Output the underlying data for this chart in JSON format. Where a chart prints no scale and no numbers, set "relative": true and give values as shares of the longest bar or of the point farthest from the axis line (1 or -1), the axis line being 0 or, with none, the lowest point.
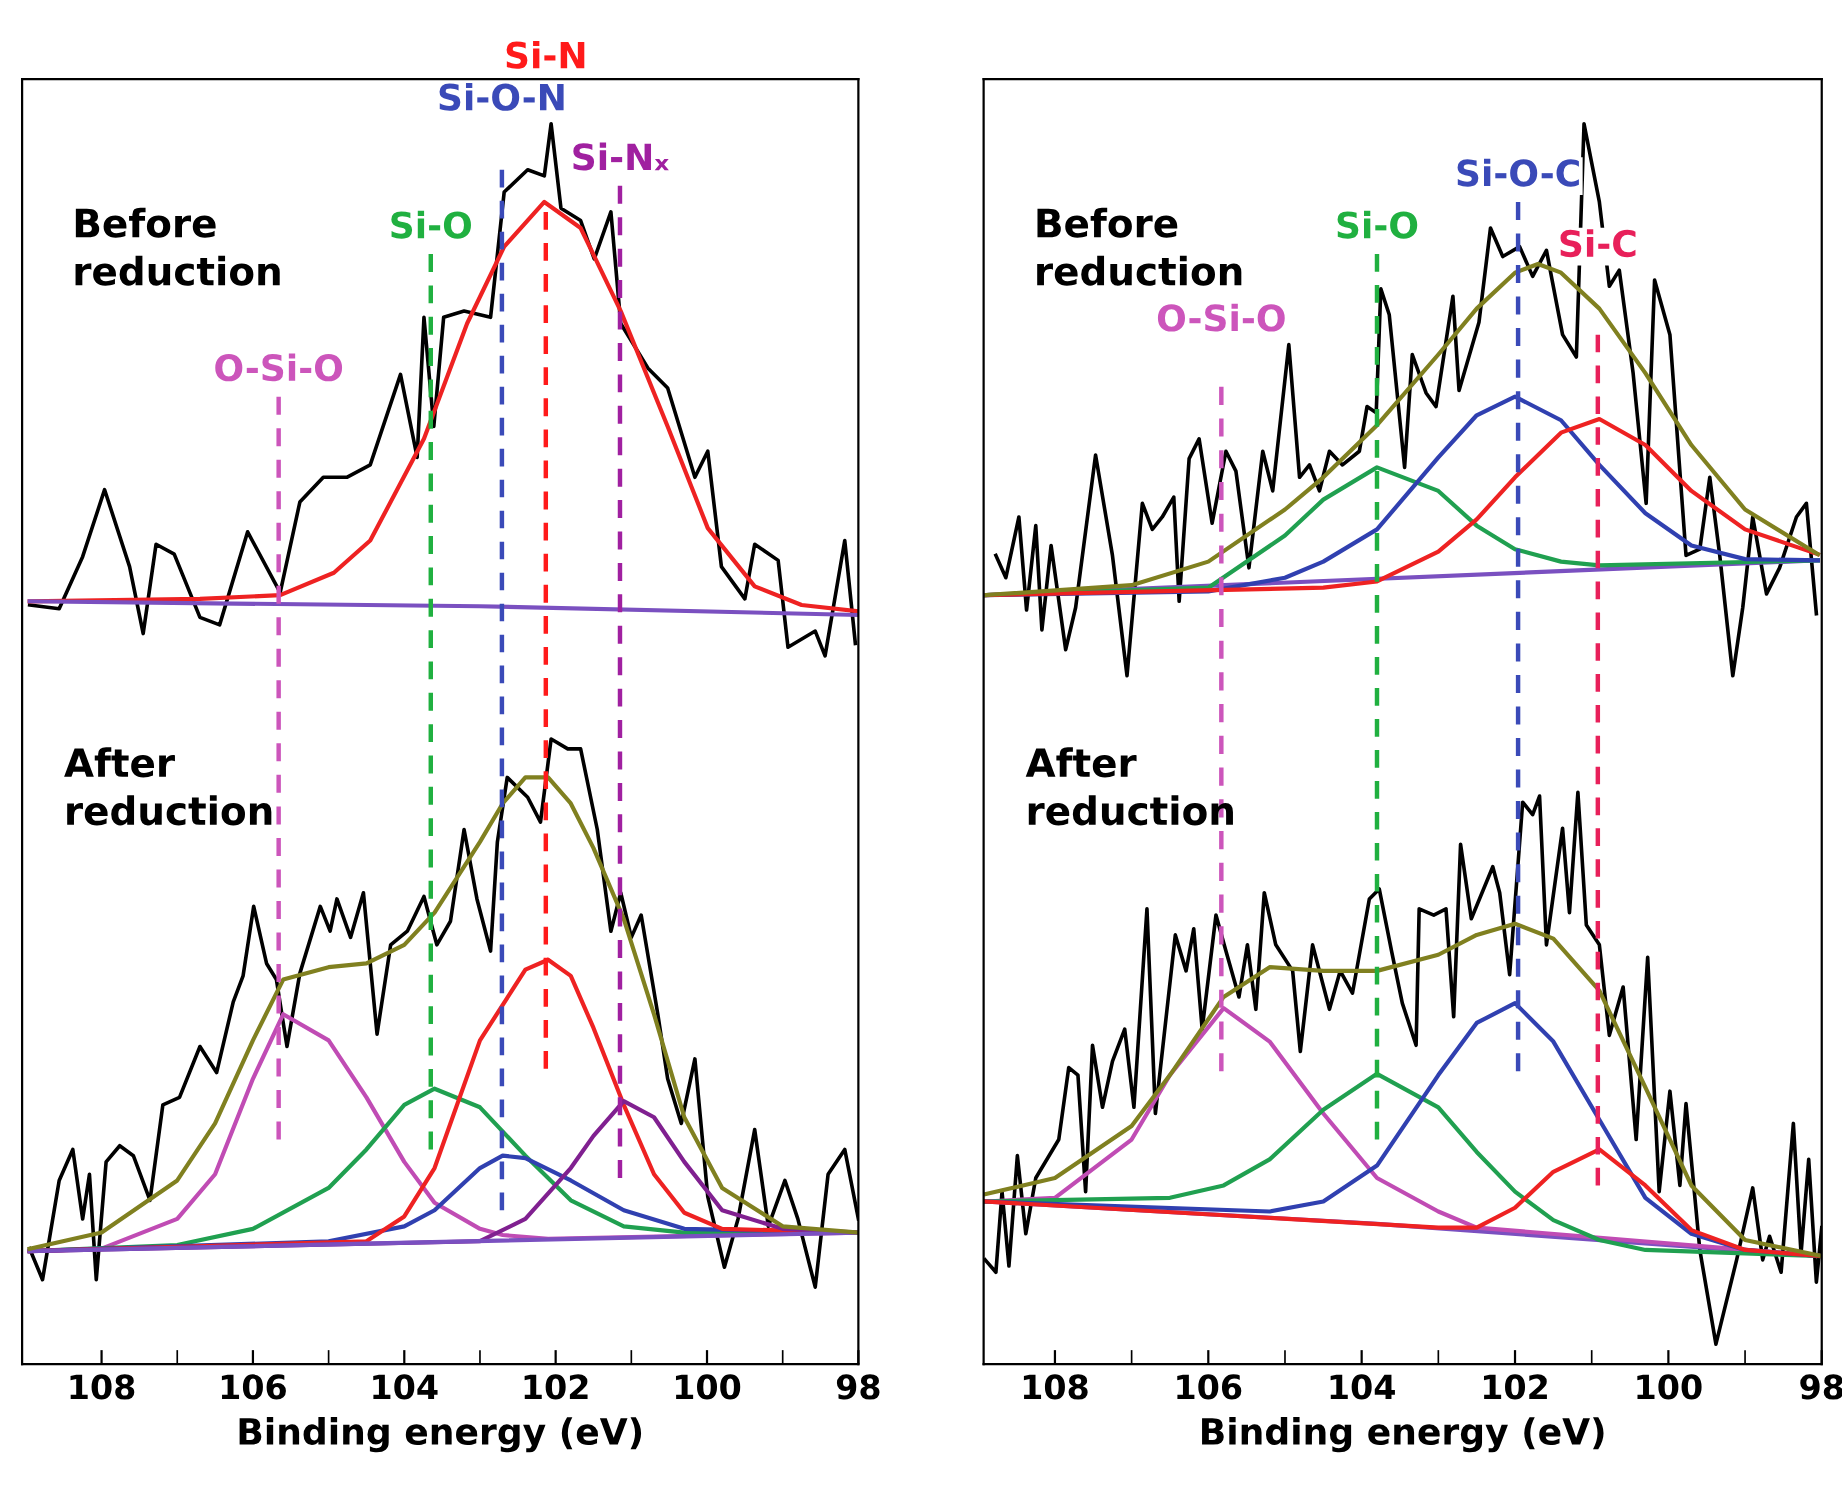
{
  "chart_data": [
    {
      "type": "line",
      "xlabel": "Binding energy (eV)",
      "xlim": [
        109.05,
        98
      ],
      "xticks": [
        108,
        106,
        104,
        102,
        100,
        98
      ],
      "relative": true,
      "grid": false,
      "legend": false,
      "annotations": [
        "Before\nreduction",
        "After\nreduction"
      ],
      "series": [
        {
          "color": "#000000",
          "x": [
            108.95,
            108.56,
            108.25,
            107.96,
            107.63,
            107.45,
            107.28,
            107.04,
            106.7,
            106.44,
            106.07,
            105.64,
            105.38,
            105.07,
            104.76,
            104.45,
            104.05,
            103.83,
            103.74,
            103.61,
            103.48,
            103.21,
            102.86,
            102.68,
            102.37,
            102.15,
            102.06,
            101.93,
            101.67,
            101.49,
            101.27,
            101.14,
            100.78,
            100.52,
            100.16,
            99.99,
            99.81,
            99.5,
            99.37,
            99.06,
            98.93,
            98.57,
            98.44,
            98.18,
            98.04
          ],
          "values": [
            0.612,
            0.609,
            0.651,
            0.705,
            0.643,
            0.589,
            0.661,
            0.653,
            0.602,
            0.596,
            0.671,
            0.622,
            0.695,
            0.715,
            0.715,
            0.725,
            0.798,
            0.731,
            0.844,
            0.756,
            0.844,
            0.849,
            0.844,
            0.945,
            0.963,
            0.958,
            1.0,
            0.932,
            0.922,
            0.891,
            0.929,
            0.839,
            0.803,
            0.787,
            0.715,
            0.736,
            0.643,
            0.617,
            0.661,
            0.648,
            0.578,
            0.591,
            0.571,
            0.664,
            0.581
          ]
        },
        {
          "color": "#ee2222",
          "x": [
            108.95,
            106.7,
            105.64,
            104.93,
            104.45,
            103.74,
            103.17,
            102.68,
            102.15,
            101.67,
            101.14,
            100.52,
            99.99,
            99.37,
            98.75,
            98.0
          ],
          "values": [
            0.615,
            0.617,
            0.62,
            0.638,
            0.664,
            0.746,
            0.839,
            0.901,
            0.937,
            0.916,
            0.849,
            0.756,
            0.674,
            0.627,
            0.612,
            0.607
          ]
        },
        {
          "color": "#7a50c0",
          "x": [
            108.95,
            103.0,
            98.0
          ],
          "values": [
            0.615,
            0.611,
            0.604
          ]
        },
        {
          "color": "#000000",
          "x": [
            108.95,
            108.78,
            108.56,
            108.38,
            108.25,
            108.16,
            108.07,
            107.94,
            107.76,
            107.58,
            107.36,
            107.19,
            106.97,
            106.7,
            106.48,
            106.26,
            106.13,
            105.99,
            105.82,
            105.69,
            105.55,
            105.38,
            105.11,
            104.98,
            104.89,
            104.71,
            104.54,
            104.36,
            104.18,
            103.96,
            103.74,
            103.57,
            103.39,
            103.21,
            103.04,
            102.86,
            102.77,
            102.64,
            102.37,
            102.2,
            102.06,
            101.84,
            101.67,
            101.45,
            101.27,
            101.14,
            101.0,
            100.87,
            100.65,
            100.52,
            100.34,
            100.16,
            99.99,
            99.77,
            99.59,
            99.37,
            99.19,
            98.97,
            98.8,
            98.57,
            98.4,
            98.18,
            98.0
          ],
          "values": [
            0.093,
            0.068,
            0.148,
            0.173,
            0.117,
            0.153,
            0.068,
            0.163,
            0.176,
            0.168,
            0.132,
            0.209,
            0.215,
            0.256,
            0.235,
            0.292,
            0.313,
            0.369,
            0.323,
            0.31,
            0.256,
            0.315,
            0.369,
            0.349,
            0.375,
            0.344,
            0.38,
            0.266,
            0.338,
            0.349,
            0.377,
            0.338,
            0.357,
            0.431,
            0.375,
            0.333,
            0.421,
            0.473,
            0.457,
            0.437,
            0.504,
            0.496,
            0.496,
            0.431,
            0.349,
            0.38,
            0.344,
            0.362,
            0.282,
            0.23,
            0.194,
            0.246,
            0.135,
            0.078,
            0.117,
            0.189,
            0.111,
            0.148,
            0.117,
            0.062,
            0.153,
            0.173,
            0.117
          ]
        },
        {
          "color": "#c04cb4",
          "x": [
            108.95,
            108,
            107,
            106.5,
            106,
            105.6,
            105,
            104.5,
            104,
            103.6,
            103,
            102.7,
            102.1,
            98
          ],
          "values": [
            0.091,
            0.093,
            0.117,
            0.153,
            0.23,
            0.282,
            0.261,
            0.215,
            0.163,
            0.13,
            0.109,
            0.104,
            0.101,
            0.106
          ]
        },
        {
          "color": "#20a050",
          "x": [
            108.95,
            107,
            106,
            105,
            104.5,
            104,
            103.6,
            103,
            102.4,
            101.8,
            101.1,
            100.3,
            98
          ],
          "values": [
            0.091,
            0.096,
            0.109,
            0.142,
            0.173,
            0.209,
            0.222,
            0.207,
            0.168,
            0.132,
            0.111,
            0.106,
            0.106
          ]
        },
        {
          "color": "#3040b0",
          "x": [
            108.95,
            105,
            104,
            103.6,
            103,
            102.7,
            102.4,
            101.8,
            101.1,
            100.3,
            98
          ],
          "values": [
            0.091,
            0.099,
            0.111,
            0.124,
            0.158,
            0.168,
            0.166,
            0.148,
            0.124,
            0.109,
            0.106
          ]
        },
        {
          "color": "#ee2222",
          "x": [
            108.95,
            104.5,
            104,
            103.6,
            103,
            102.4,
            102.1,
            101.8,
            101.5,
            101.1,
            100.7,
            100.3,
            99.8,
            98
          ],
          "values": [
            0.091,
            0.099,
            0.119,
            0.158,
            0.261,
            0.318,
            0.326,
            0.313,
            0.271,
            0.209,
            0.153,
            0.122,
            0.109,
            0.106
          ]
        },
        {
          "color": "#802090",
          "x": [
            108.95,
            103,
            102.4,
            101.8,
            101.5,
            101.1,
            100.7,
            100.3,
            99.8,
            99,
            98
          ],
          "values": [
            0.091,
            0.099,
            0.117,
            0.158,
            0.184,
            0.212,
            0.199,
            0.163,
            0.124,
            0.109,
            0.106
          ]
        },
        {
          "color": "#7a50c0",
          "x": [
            108.95,
            98
          ],
          "values": [
            0.091,
            0.106
          ]
        },
        {
          "color": "#808020",
          "x": [
            108.95,
            108,
            107,
            106.5,
            106,
            105.6,
            105,
            104.5,
            104,
            103.6,
            103,
            102.7,
            102.4,
            102.1,
            101.8,
            101.5,
            101.1,
            100.7,
            100.3,
            99.8,
            99,
            98
          ],
          "values": [
            0.093,
            0.106,
            0.148,
            0.194,
            0.261,
            0.31,
            0.32,
            0.323,
            0.338,
            0.364,
            0.421,
            0.452,
            0.473,
            0.473,
            0.452,
            0.416,
            0.359,
            0.282,
            0.199,
            0.142,
            0.111,
            0.106
          ]
        },
        {
          "name": "O-Si-O",
          "color": "#cc55bb",
          "line_style": "dashed",
          "x": [
            105.66,
            105.66
          ],
          "values": [
            0.78,
            0.181
          ]
        },
        {
          "name": "Si-O",
          "color": "#20b040",
          "line_style": "dashed",
          "x": [
            103.65,
            103.65
          ],
          "values": [
            0.895,
            0.173
          ]
        },
        {
          "name": "Si-O-N",
          "color": "#3a4ab8",
          "line_style": "dashed",
          "x": [
            102.71,
            102.71
          ],
          "values": [
            0.963,
            0.124
          ]
        },
        {
          "name": "Si-N",
          "color": "#ff1a1a",
          "line_style": "dashed",
          "x": [
            102.13,
            102.13
          ],
          "values": [
            0.929,
            0.238
          ]
        },
        {
          "name": "Si-Nₓ",
          "color": "#a020a0",
          "line_style": "dashed",
          "x": [
            101.15,
            101.15
          ],
          "values": [
            0.95,
            0.15
          ]
        }
      ]
    },
    {
      "type": "line",
      "xlabel": "Binding energy (eV)",
      "xlim": [
        108.93,
        98
      ],
      "xticks": [
        108,
        106,
        104,
        102,
        100,
        98
      ],
      "relative": true,
      "grid": false,
      "legend": false,
      "annotations": [
        "Before\nreduction",
        "After\nreduction"
      ],
      "series": [
        {
          "color": "#000000",
          "x": [
            108.77,
            108.64,
            108.47,
            108.37,
            108.25,
            108.17,
            108.05,
            107.86,
            107.73,
            107.47,
            107.25,
            107.06,
            106.86,
            106.73,
            106.6,
            106.45,
            106.38,
            106.25,
            106.12,
            105.95,
            105.77,
            105.64,
            105.47,
            105.29,
            105.16,
            104.95,
            104.81,
            104.68,
            104.55,
            104.42,
            104.25,
            104.03,
            103.93,
            103.81,
            103.75,
            103.64,
            103.44,
            103.34,
            103.16,
            103.03,
            102.81,
            102.73,
            102.47,
            102.32,
            102.16,
            101.94,
            101.77,
            101.59,
            101.51,
            101.38,
            101.2,
            101.1,
            100.9,
            100.77,
            100.64,
            100.46,
            100.29,
            100.18,
            99.98,
            99.77,
            99.59,
            99.46,
            99.33,
            99.16,
            99.03,
            98.9,
            98.72,
            98.55,
            98.33,
            98.2,
            98.07
          ],
          "values": [
            0.652,
            0.634,
            0.683,
            0.608,
            0.676,
            0.592,
            0.66,
            0.576,
            0.61,
            0.733,
            0.652,
            0.555,
            0.694,
            0.673,
            0.683,
            0.699,
            0.615,
            0.73,
            0.746,
            0.678,
            0.736,
            0.72,
            0.642,
            0.736,
            0.704,
            0.822,
            0.715,
            0.725,
            0.704,
            0.736,
            0.725,
            0.736,
            0.772,
            0.767,
            0.867,
            0.846,
            0.723,
            0.814,
            0.783,
            0.772,
            0.861,
            0.785,
            0.84,
            0.916,
            0.893,
            0.901,
            0.877,
            0.898,
            0.872,
            0.83,
            0.812,
            1.0,
            0.937,
            0.869,
            0.882,
            0.799,
            0.694,
            0.874,
            0.83,
            0.652,
            0.657,
            0.715,
            0.652,
            0.555,
            0.61,
            0.683,
            0.621,
            0.642,
            0.683,
            0.694,
            0.605
          ]
        },
        {
          "color": "#7a50c0",
          "x": [
            108.9,
            98.05
          ],
          "values": [
            0.62,
            0.648
          ]
        },
        {
          "color": "#20a050",
          "x": [
            108.9,
            106,
            105,
            104.5,
            103.8,
            103,
            102.5,
            102,
            101.4,
            100.9,
            98.05
          ],
          "values": [
            0.62,
            0.626,
            0.668,
            0.697,
            0.723,
            0.704,
            0.676,
            0.657,
            0.647,
            0.644,
            0.648
          ]
        },
        {
          "color": "#3040b0",
          "x": [
            108.9,
            106,
            105,
            104.5,
            103.8,
            103,
            102.5,
            102,
            101.4,
            100.9,
            100.3,
            99.7,
            99,
            98.05
          ],
          "values": [
            0.62,
            0.623,
            0.634,
            0.647,
            0.673,
            0.731,
            0.765,
            0.78,
            0.761,
            0.725,
            0.686,
            0.66,
            0.649,
            0.648
          ]
        },
        {
          "color": "#ee2222",
          "x": [
            108.9,
            104.5,
            103.8,
            103,
            102.5,
            102,
            101.4,
            100.9,
            100.3,
            99.7,
            99,
            98.05
          ],
          "values": [
            0.62,
            0.626,
            0.631,
            0.655,
            0.681,
            0.715,
            0.751,
            0.762,
            0.741,
            0.704,
            0.673,
            0.653
          ]
        },
        {
          "color": "#808020",
          "x": [
            108.9,
            107,
            106,
            105,
            104.5,
            103.8,
            103,
            102.5,
            102,
            101.7,
            101.4,
            100.9,
            100.3,
            99.7,
            99,
            98.05
          ],
          "values": [
            0.62,
            0.628,
            0.647,
            0.689,
            0.715,
            0.757,
            0.814,
            0.851,
            0.88,
            0.887,
            0.88,
            0.851,
            0.799,
            0.741,
            0.689,
            0.653
          ]
        },
        {
          "color": "#000000",
          "x": [
            108.91,
            108.77,
            108.69,
            108.6,
            108.49,
            108.38,
            108.25,
            107.95,
            107.82,
            107.7,
            107.6,
            107.51,
            107.38,
            107.25,
            107.09,
            106.97,
            106.8,
            106.69,
            106.43,
            106.29,
            106.19,
            106.08,
            105.9,
            105.77,
            105.6,
            105.49,
            105.38,
            105.27,
            105.12,
            104.9,
            104.8,
            104.64,
            104.42,
            104.28,
            104.12,
            103.9,
            103.77,
            103.61,
            103.47,
            103.29,
            103.25,
            103.06,
            102.9,
            102.8,
            102.71,
            102.57,
            102.29,
            102.2,
            102.07,
            101.9,
            101.77,
            101.68,
            101.59,
            101.38,
            101.29,
            101.18,
            101.07,
            100.9,
            100.77,
            100.59,
            100.42,
            100.27,
            100.12,
            99.98,
            99.85,
            99.77,
            99.59,
            99.38,
            99.11,
            98.9,
            98.77,
            98.68,
            98.53,
            98.37,
            98.27,
            98.17,
            98.07,
            98.0
          ],
          "values": [
            0.084,
            0.074,
            0.139,
            0.079,
            0.168,
            0.105,
            0.15,
            0.181,
            0.239,
            0.233,
            0.139,
            0.257,
            0.207,
            0.244,
            0.27,
            0.207,
            0.367,
            0.202,
            0.346,
            0.317,
            0.351,
            0.27,
            0.362,
            0.333,
            0.296,
            0.338,
            0.286,
            0.38,
            0.338,
            0.317,
            0.252,
            0.338,
            0.286,
            0.317,
            0.299,
            0.375,
            0.383,
            0.333,
            0.291,
            0.257,
            0.367,
            0.362,
            0.367,
            0.28,
            0.419,
            0.359,
            0.401,
            0.38,
            0.314,
            0.453,
            0.443,
            0.458,
            0.338,
            0.432,
            0.364,
            0.461,
            0.354,
            0.338,
            0.265,
            0.304,
            0.181,
            0.328,
            0.139,
            0.22,
            0.144,
            0.21,
            0.092,
            0.016,
            0.084,
            0.142,
            0.084,
            0.103,
            0.074,
            0.194,
            0.089,
            0.165,
            0.066,
            0.11
          ]
        },
        {
          "color": "#7a50c0",
          "x": [
            108.9,
            103.8,
            98
          ],
          "values": [
            0.131,
            0.113,
            0.087
          ]
        },
        {
          "color": "#c04cb4",
          "x": [
            108.9,
            108,
            107,
            106.5,
            105.8,
            105.2,
            104.5,
            103.8,
            103,
            102.5,
            98
          ],
          "values": [
            0.131,
            0.134,
            0.181,
            0.233,
            0.287,
            0.26,
            0.202,
            0.15,
            0.123,
            0.11,
            0.087
          ]
        },
        {
          "color": "#20a050",
          "x": [
            108.9,
            106.5,
            105.8,
            105.2,
            104.5,
            103.8,
            103,
            102.5,
            102,
            101.5,
            100.9,
            100.3,
            98
          ],
          "values": [
            0.131,
            0.134,
            0.144,
            0.165,
            0.205,
            0.234,
            0.207,
            0.171,
            0.139,
            0.116,
            0.1,
            0.092,
            0.087
          ]
        },
        {
          "color": "#3040b0",
          "x": [
            108.9,
            105.2,
            104.5,
            103.8,
            103,
            102.5,
            102,
            101.5,
            100.9,
            100.3,
            99.7,
            99,
            98
          ],
          "values": [
            0.131,
            0.123,
            0.131,
            0.16,
            0.233,
            0.275,
            0.291,
            0.26,
            0.197,
            0.134,
            0.105,
            0.092,
            0.087
          ]
        },
        {
          "color": "#ee2222",
          "x": [
            108.9,
            103,
            102.5,
            102,
            101.5,
            100.9,
            100.3,
            99.7,
            99,
            98
          ],
          "values": [
            0.131,
            0.11,
            0.11,
            0.126,
            0.155,
            0.173,
            0.144,
            0.108,
            0.092,
            0.087
          ]
        },
        {
          "color": "#808020",
          "x": [
            108.9,
            108,
            107,
            106.5,
            105.8,
            105.2,
            104.5,
            103.8,
            103,
            102.5,
            102,
            101.5,
            100.9,
            100.3,
            99.7,
            99,
            98
          ],
          "values": [
            0.137,
            0.15,
            0.192,
            0.233,
            0.296,
            0.32,
            0.317,
            0.317,
            0.33,
            0.346,
            0.355,
            0.343,
            0.301,
            0.223,
            0.144,
            0.1,
            0.087
          ]
        },
        {
          "name": "O-Si-O",
          "color": "#cc55bb",
          "line_style": "dashed",
          "x": [
            105.83,
            105.83
          ],
          "values": [
            0.788,
            0.236
          ]
        },
        {
          "name": "Si-O",
          "color": "#20b040",
          "line_style": "dashed",
          "x": [
            103.8,
            103.8
          ],
          "values": [
            0.895,
            0.181
          ]
        },
        {
          "name": "Si-O-C",
          "color": "#3a4ab8",
          "line_style": "dashed",
          "x": [
            101.96,
            101.96
          ],
          "values": [
            0.937,
            0.236
          ]
        },
        {
          "name": "Si-C",
          "color": "#e8205a",
          "line_style": "dashed",
          "x": [
            100.92,
            100.92
          ],
          "values": [
            0.83,
            0.144
          ]
        }
      ]
    }
  ]
}
